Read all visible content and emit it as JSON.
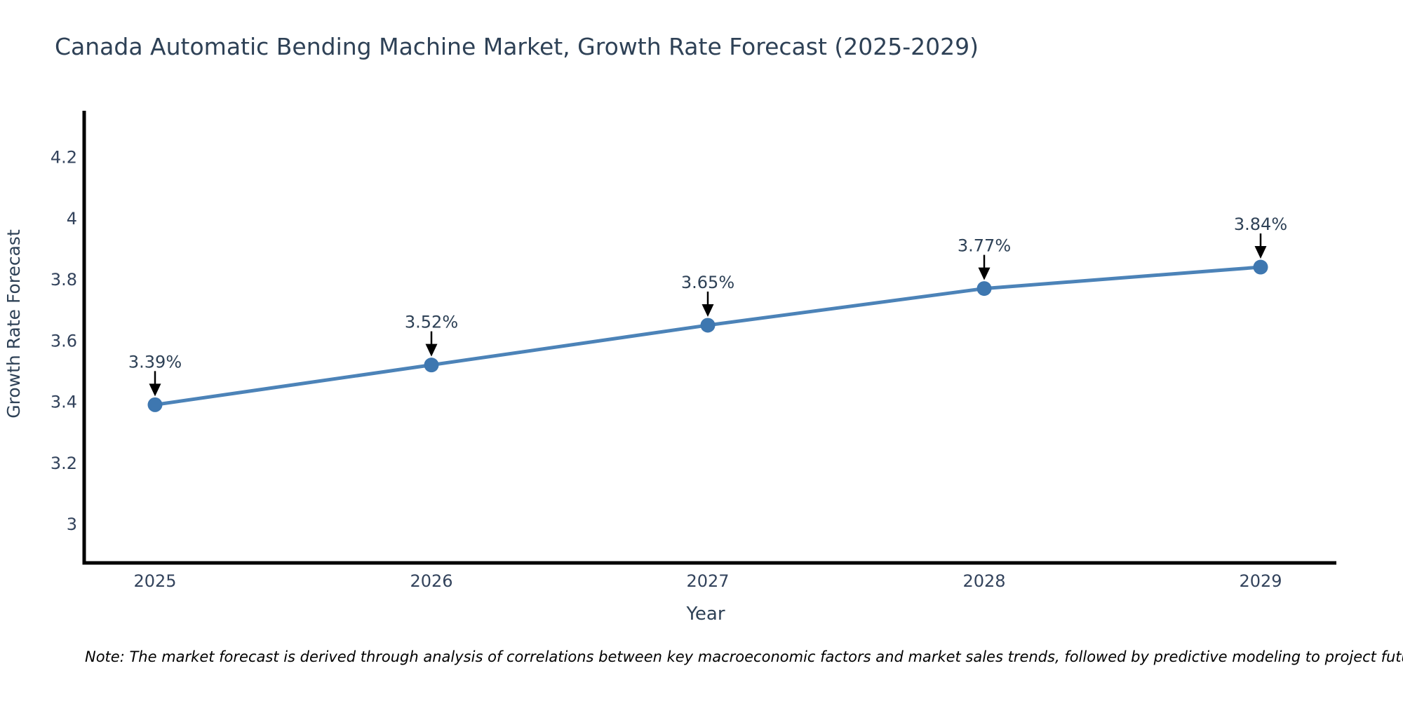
{
  "title": "Canada Automatic Bending Machine Market, Growth Rate Forecast (2025-2029)",
  "note": "Note: The market forecast is derived through analysis of correlations between key macroeconomic factors and market sales trends, followed by predictive modeling to project future sales",
  "chart_data": {
    "type": "line",
    "title": "Canada Automatic Bending Machine Market, Growth Rate Forecast (2025-2029)",
    "xlabel": "Year",
    "ylabel": "Growth Rate Forecast",
    "categories": [
      "2025",
      "2026",
      "2027",
      "2028",
      "2029"
    ],
    "series": [
      {
        "name": "Growth Rate Forecast",
        "values": [
          3.39,
          3.52,
          3.65,
          3.77,
          3.84
        ]
      }
    ],
    "point_labels": [
      "3.39%",
      "3.52%",
      "3.65%",
      "3.77%",
      "3.84%"
    ],
    "yticks": [
      "3",
      "3.2",
      "3.4",
      "3.6",
      "3.8",
      "4",
      "4.2"
    ],
    "ytick_values": [
      3,
      3.2,
      3.4,
      3.6,
      3.8,
      4,
      4.2
    ],
    "ylim": [
      2.87,
      4.35
    ],
    "grid": false,
    "legend_position": "none",
    "colors": {
      "line": "#4c83b8",
      "marker": "#3e77b0",
      "axis": "#000000",
      "text": "#2e4156",
      "tick_text": "#33435c",
      "annotation_arrow": "#000000",
      "note_text": "#000000"
    }
  }
}
